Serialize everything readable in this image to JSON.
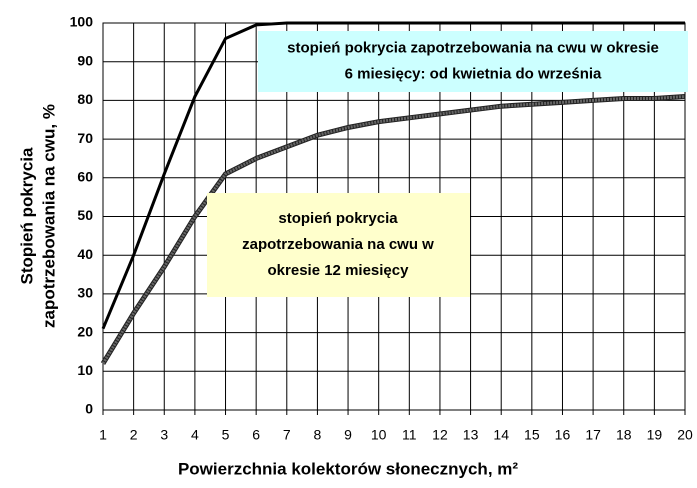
{
  "chart_data": {
    "type": "line",
    "y_label": [
      "Stopień pokrycia",
      "zapotrzebowania na cwu, %"
    ],
    "x_label": "Powierzchnia kolektorów słonecznych, m²",
    "x": [
      1,
      2,
      3,
      4,
      5,
      6,
      7,
      8,
      9,
      10,
      11,
      12,
      13,
      14,
      15,
      16,
      17,
      18,
      19,
      20
    ],
    "series": [
      {
        "name": "stopień pokrycia zapotrzebowania na cwu w okresie 6 miesięcy: od kwietnia do września",
        "color": "#000000",
        "values": [
          21,
          40,
          61,
          81,
          96,
          99.5,
          100,
          100,
          100,
          100,
          100,
          100,
          100,
          100,
          100,
          100,
          100,
          100,
          100,
          100
        ]
      },
      {
        "name": "stopień pokrycia zapotrzebowania na cwu w okresie 12 miesięcy",
        "color": "#666666",
        "values": [
          12,
          25,
          37,
          50,
          61,
          65,
          68,
          71,
          73,
          74.5,
          75.5,
          76.5,
          77.5,
          78.5,
          79,
          79.5,
          80,
          80.5,
          80.5,
          81
        ]
      }
    ],
    "annotations": [
      {
        "lines": [
          "stopień pokrycia zapotrzebowania na cwu w okresie",
          "6 miesięcy: od kwietnia do września"
        ],
        "color": "#ccffff"
      },
      {
        "lines": [
          "stopień pokrycia",
          "zapotrzebowania na cwu w",
          "okresie 12 miesięcy"
        ],
        "color": "#ffffcc"
      }
    ],
    "xlim": [
      1,
      20
    ],
    "ylim": [
      0,
      100
    ],
    "xticks": [
      1,
      2,
      3,
      4,
      5,
      6,
      7,
      8,
      9,
      10,
      11,
      12,
      13,
      14,
      15,
      16,
      17,
      18,
      19,
      20
    ],
    "yticks": [
      0,
      10,
      20,
      30,
      40,
      50,
      60,
      70,
      80,
      90,
      100
    ],
    "grid": true
  }
}
